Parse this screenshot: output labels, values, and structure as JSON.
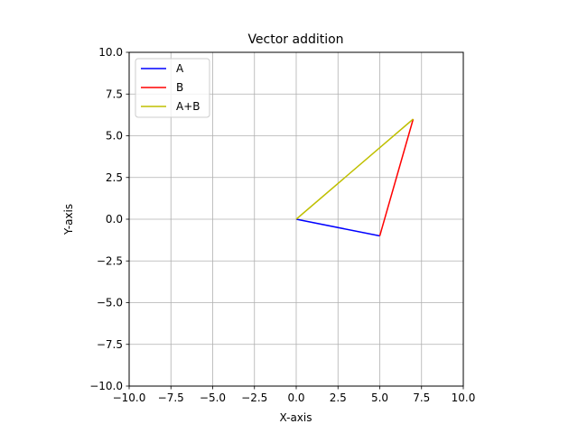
{
  "chart_data": {
    "type": "line",
    "title": "Vector addition",
    "xlabel": "X-axis",
    "ylabel": "Y-axis",
    "xlim": [
      -10,
      10
    ],
    "ylim": [
      -10,
      10
    ],
    "grid": true,
    "legend_position": "top-left",
    "xticks": [
      -10,
      -7.5,
      -5,
      -2.5,
      0,
      2.5,
      5,
      7.5,
      10
    ],
    "yticks": [
      -10,
      -7.5,
      -5,
      -2.5,
      0,
      2.5,
      5,
      7.5,
      10
    ],
    "xtick_labels": [
      "−10.0",
      "−7.5",
      "−5.0",
      "−2.5",
      "0.0",
      "2.5",
      "5.0",
      "7.5",
      "10.0"
    ],
    "ytick_labels": [
      "−10.0",
      "−7.5",
      "−5.0",
      "−2.5",
      "0.0",
      "2.5",
      "5.0",
      "7.5",
      "10.0"
    ],
    "series": [
      {
        "name": "A",
        "color": "#0000ff",
        "x": [
          0,
          5
        ],
        "y": [
          0,
          -1
        ]
      },
      {
        "name": "B",
        "color": "#ff0000",
        "x": [
          5,
          7
        ],
        "y": [
          -1,
          6
        ]
      },
      {
        "name": "A+B",
        "color": "#bfbf00",
        "x": [
          0,
          7
        ],
        "y": [
          0,
          6
        ]
      }
    ]
  }
}
